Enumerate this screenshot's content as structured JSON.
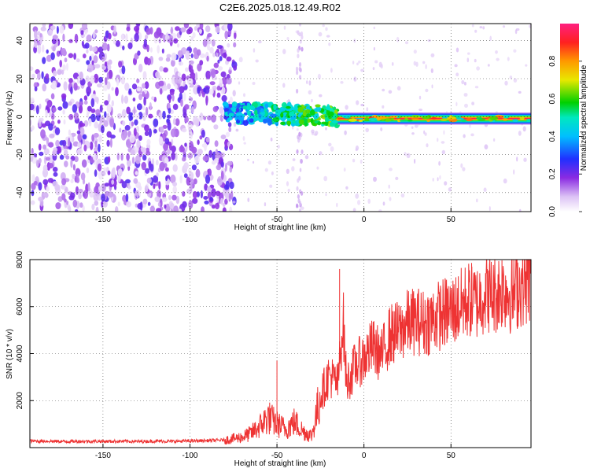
{
  "figure": {
    "title": "C2E6.2025.018.12.49.R02"
  },
  "chart_data": [
    {
      "type": "heatmap",
      "xlabel": "Height of straight line (km)",
      "ylabel": "Frequency (Hz)",
      "xlim": [
        -192,
        96
      ],
      "ylim": [
        -50,
        49
      ],
      "xticks": [
        -150,
        -100,
        -50,
        0,
        50
      ],
      "yticks": [
        -40,
        -20,
        0,
        20,
        40
      ],
      "grid": true,
      "colorbar": {
        "label": "Normalized spectral amplitude",
        "range": [
          0,
          1
        ],
        "ticks": [
          0.0,
          0.2,
          0.4,
          0.6,
          0.8
        ],
        "colormap": "rainbow (white, violet, blue, cyan, green, yellow, orange, red, pink)"
      },
      "regions": [
        {
          "x_from": -192,
          "x_to": -80,
          "description": "broadband noise, amplitude approx 0.0-0.25 across all frequencies"
        },
        {
          "x_from": -80,
          "x_to": -15,
          "freq_center_hz": 2,
          "freq_halfwidth_hz": 5,
          "amplitude": 0.5
        },
        {
          "x_from": -15,
          "x_to": 96,
          "freq_center_hz": -1,
          "freq_halfwidth_hz": 2,
          "amplitude": 0.95
        }
      ],
      "colors": {
        "low": "#7a1fe0",
        "mid": "#00c8ff",
        "high": "#e0203a"
      }
    },
    {
      "type": "line",
      "xlabel": "Height of straight line (km)",
      "ylabel": "SNR (10 * v/v)",
      "xlim": [
        -192,
        96
      ],
      "ylim": [
        0,
        8000
      ],
      "xticks": [
        -150,
        -100,
        -50,
        0,
        50
      ],
      "yticks": [
        2000,
        4000,
        6000,
        8000
      ],
      "grid": true,
      "series": [
        {
          "color": "#ee3333",
          "x": [
            -192,
            -180,
            -170,
            -160,
            -150,
            -140,
            -130,
            -120,
            -110,
            -100,
            -90,
            -80,
            -75,
            -70,
            -65,
            -60,
            -55,
            -50,
            -45,
            -40,
            -35,
            -30,
            -25,
            -20,
            -15,
            -12,
            -10,
            -5,
            0,
            5,
            10,
            15,
            20,
            25,
            30,
            35,
            40,
            45,
            50,
            55,
            60,
            65,
            70,
            75,
            80,
            85,
            90,
            96
          ],
          "values": [
            280,
            270,
            260,
            270,
            265,
            270,
            260,
            275,
            265,
            280,
            300,
            320,
            380,
            450,
            600,
            900,
            1300,
            1000,
            800,
            1100,
            700,
            500,
            2200,
            3100,
            2700,
            5500,
            2700,
            3500,
            3800,
            4300,
            3900,
            4800,
            4900,
            5300,
            5400,
            5300,
            5500,
            5700,
            5800,
            6000,
            6300,
            6200,
            6600,
            6500,
            6800,
            6500,
            6900,
            7100
          ]
        }
      ],
      "peak_markers": [
        {
          "x": -50,
          "y": 3700
        },
        {
          "x": -14,
          "y": 7600
        },
        {
          "x": 62,
          "y": 7700
        },
        {
          "x": 88,
          "y": 8000
        }
      ]
    }
  ]
}
